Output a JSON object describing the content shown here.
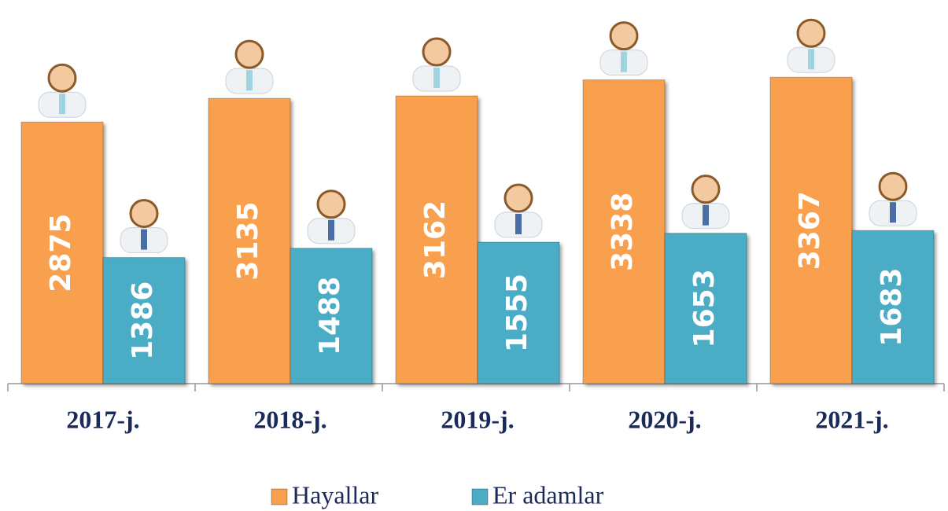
{
  "chart_data": {
    "type": "bar",
    "categories": [
      "2017-j.",
      "2018-j.",
      "2019-j.",
      "2020-j.",
      "2021-j."
    ],
    "series": [
      {
        "name": "Hayallar",
        "color": "#f9a04f",
        "values": [
          2875,
          3135,
          3162,
          3338,
          3367
        ]
      },
      {
        "name": "Er adamlar",
        "color": "#4bacc6",
        "values": [
          1386,
          1488,
          1555,
          1653,
          1683
        ]
      }
    ],
    "ylim": [
      0,
      4000
    ]
  }
}
